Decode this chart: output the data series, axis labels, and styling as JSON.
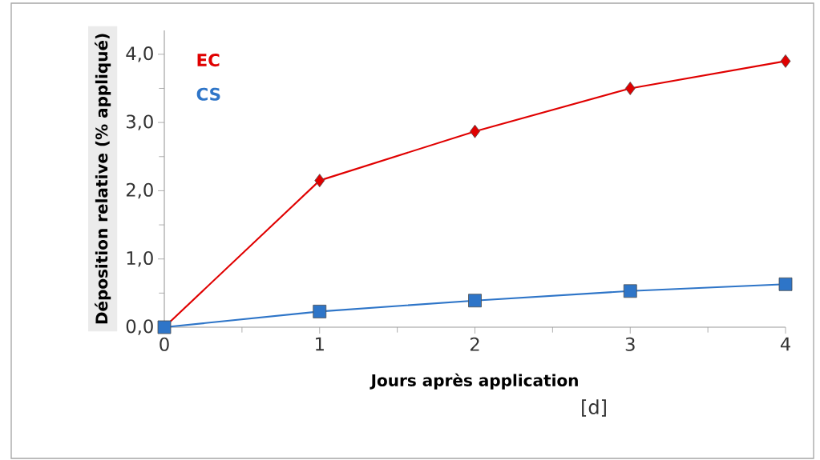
{
  "chart_data": {
    "type": "line",
    "xlabel": "Jours après application",
    "ylabel": "Déposition relative (% appliqué)",
    "x": [
      0,
      1,
      2,
      3,
      4
    ],
    "series": [
      {
        "name": "EC",
        "color": "#e00000",
        "marker": "diamond",
        "values": [
          0,
          2.15,
          2.87,
          3.5,
          3.9
        ]
      },
      {
        "name": "CS",
        "color": "#2e75c8",
        "marker": "square",
        "values": [
          0,
          0.23,
          0.39,
          0.53,
          0.63
        ]
      }
    ],
    "xlim": [
      0,
      4
    ],
    "xticks": [
      0,
      1,
      2,
      3,
      4
    ],
    "ylim": [
      0,
      4.35
    ],
    "yticks": [
      {
        "value": 0,
        "label": "0,0"
      },
      {
        "value": 1,
        "label": "1,0"
      },
      {
        "value": 2,
        "label": "2,0"
      },
      {
        "value": 3,
        "label": "3,0"
      },
      {
        "value": 4,
        "label": "4,0"
      }
    ],
    "grid": false,
    "legend": "top left",
    "line_style": "solid",
    "annotations": [
      "[d]"
    ]
  }
}
